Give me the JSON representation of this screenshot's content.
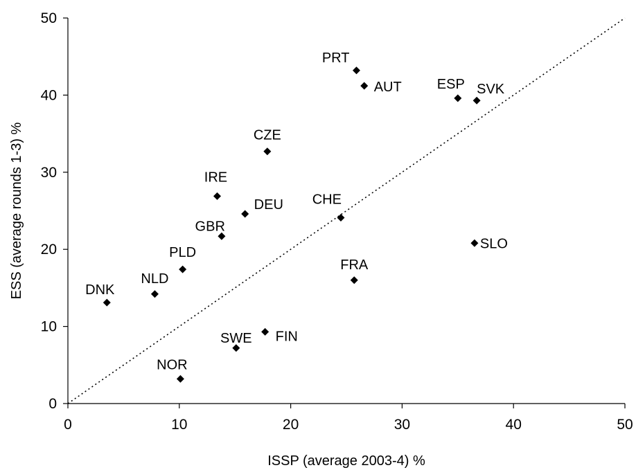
{
  "chart_data": {
    "type": "scatter",
    "title": "",
    "xlabel": "ISSP (average 2003-4) %",
    "ylabel": "ESS (average rounds 1-3) %",
    "xlim": [
      0,
      50
    ],
    "ylim": [
      0,
      50
    ],
    "x_ticks": [
      0,
      10,
      20,
      30,
      40,
      50
    ],
    "y_ticks": [
      0,
      10,
      20,
      30,
      40,
      50
    ],
    "grid": false,
    "legend": "none",
    "marker": "diamond",
    "marker_color": "#000000",
    "reference_line": {
      "style": "dotted",
      "from": [
        0,
        0
      ],
      "to": [
        50,
        50
      ]
    },
    "points": [
      {
        "label": "PRT",
        "x": 25.9,
        "y": 43.2
      },
      {
        "label": "AUT",
        "x": 26.6,
        "y": 41.2
      },
      {
        "label": "ESP",
        "x": 35.0,
        "y": 39.6
      },
      {
        "label": "SVK",
        "x": 36.7,
        "y": 39.3
      },
      {
        "label": "CZE",
        "x": 17.9,
        "y": 32.7
      },
      {
        "label": "IRE",
        "x": 13.4,
        "y": 26.9
      },
      {
        "label": "DEU",
        "x": 15.9,
        "y": 24.6
      },
      {
        "label": "CHE",
        "x": 24.5,
        "y": 24.1
      },
      {
        "label": "GBR",
        "x": 13.8,
        "y": 21.7
      },
      {
        "label": "SLO",
        "x": 36.5,
        "y": 20.8
      },
      {
        "label": "PLD",
        "x": 10.3,
        "y": 17.4
      },
      {
        "label": "FRA",
        "x": 25.7,
        "y": 16.0
      },
      {
        "label": "NLD",
        "x": 7.8,
        "y": 14.2
      },
      {
        "label": "DNK",
        "x": 3.5,
        "y": 13.1
      },
      {
        "label": "FIN",
        "x": 17.7,
        "y": 9.3
      },
      {
        "label": "SWE",
        "x": 15.1,
        "y": 7.2
      },
      {
        "label": "NOR",
        "x": 10.1,
        "y": 3.2
      }
    ]
  }
}
